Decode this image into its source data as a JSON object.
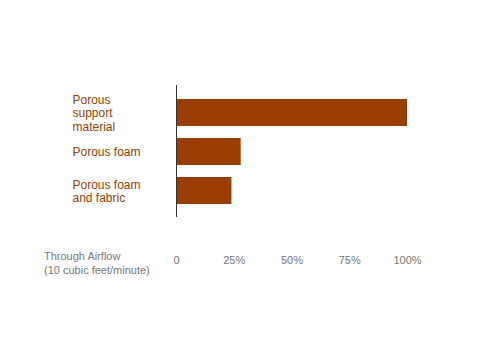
{
  "chart_data": {
    "type": "bar",
    "orientation": "horizontal",
    "categories": [
      "Porous support material",
      "Porous foam",
      "Porous foam and fabric"
    ],
    "values": [
      100,
      28,
      24
    ],
    "color": "#993d00",
    "xlabel": "Through Airflow (10 cubic feet/minute)",
    "xlim": [
      0,
      100
    ],
    "xticks": [
      0,
      {
        "value": 25,
        "label": "25%"
      },
      {
        "value": 50,
        "label": "50%"
      },
      {
        "value": 75,
        "label": "75%"
      },
      {
        "value": 100,
        "label": "100%"
      }
    ],
    "grid": false
  }
}
